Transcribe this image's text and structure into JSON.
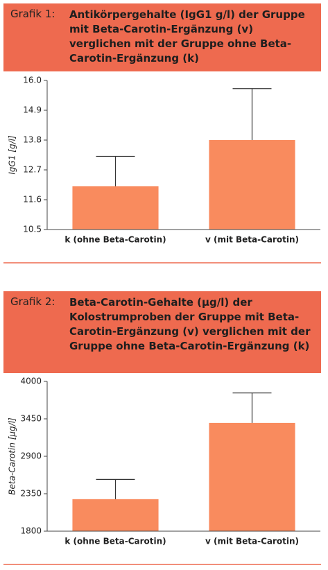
{
  "chart_data": [
    {
      "type": "bar",
      "label": "Grafik 1:",
      "title": "Antikörpergehalte (IgG1 g/l) der Gruppe mit Beta-Carotin-Ergänzung (v) verglichen mit der Gruppe ohne Beta-Carotin-Ergänzung (k)",
      "ylabel": "IgG1 [g/l]",
      "categories": [
        "k (ohne Beta-Carotin)",
        "v (mit Beta-Carotin)"
      ],
      "values": [
        12.1,
        13.8
      ],
      "errors": [
        1.1,
        1.9
      ],
      "color": "#f98b5e",
      "ylim": [
        10.5,
        16.0
      ],
      "yticks": [
        10.5,
        11.6,
        12.7,
        13.8,
        14.9,
        {
          "value": 16.0,
          "label": "16.0"
        }
      ]
    },
    {
      "type": "bar",
      "label": "Grafik 2:",
      "title": "Beta-Carotin-Gehalte (µg/l) der Kolostrumproben der Gruppe mit Beta-Carotin-Ergänzung (v) verglichen mit der Gruppe ohne Beta-Carotin-Ergänzung (k)",
      "ylabel": "Beta-Carotin [µg/l]",
      "categories": [
        "k (ohne Beta-Carotin)",
        "v (mit Beta-Carotin)"
      ],
      "values": [
        2270,
        3390
      ],
      "errors": [
        290,
        440
      ],
      "color": "#f98b5e",
      "ylim": [
        1800,
        4000
      ],
      "yticks": [
        1800,
        2350,
        2900,
        3450,
        4000
      ]
    }
  ]
}
